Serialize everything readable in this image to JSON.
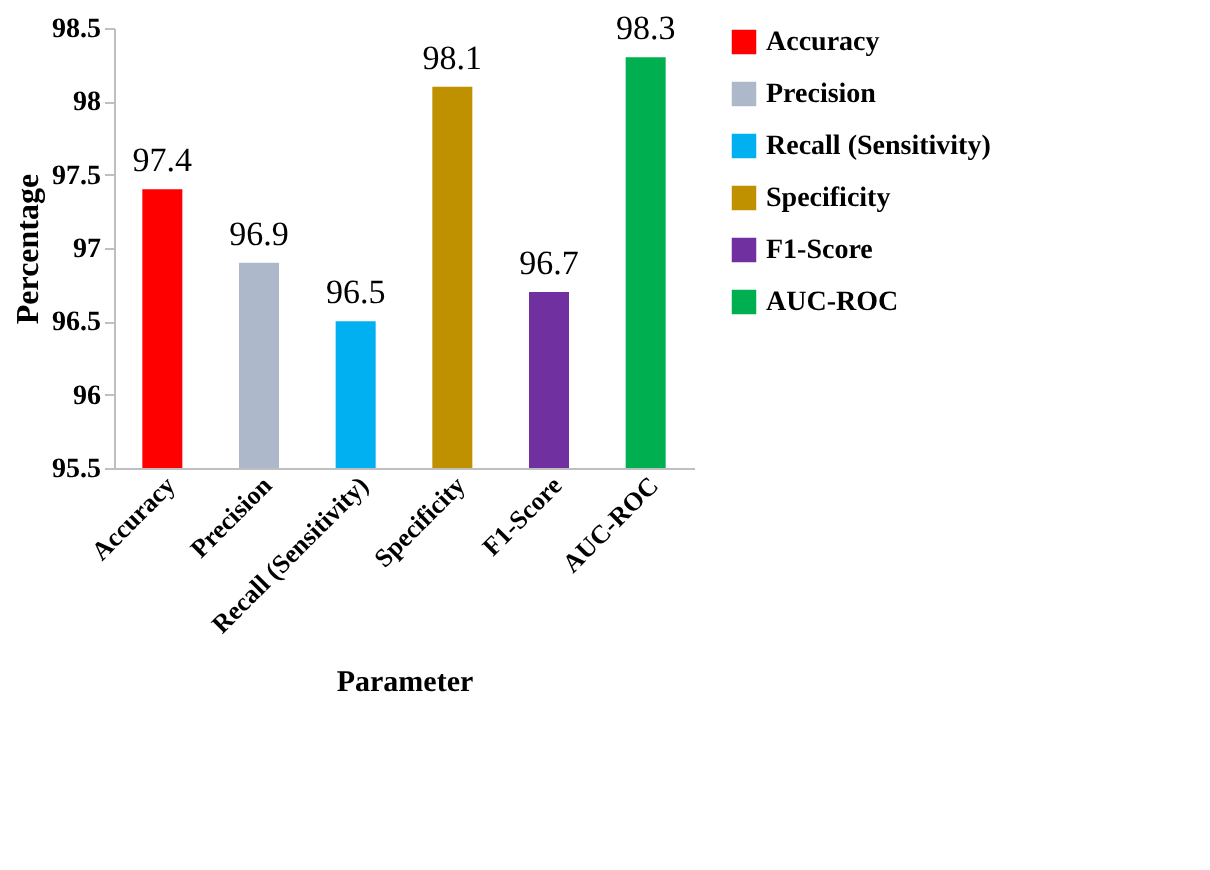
{
  "chart_data": {
    "type": "bar",
    "xlabel": "Parameter",
    "ylabel": "Percentage",
    "categories": [
      "Accuracy",
      "Precision",
      "Recall (Sensitivity)",
      "Specificity",
      "F1-Score",
      "AUC-ROC"
    ],
    "series": [
      {
        "name": "Accuracy",
        "color": "#ff0000",
        "values": [
          97.4,
          null,
          null,
          null,
          null,
          null
        ]
      },
      {
        "name": "Precision",
        "color": "#adb9ca",
        "values": [
          null,
          96.9,
          null,
          null,
          null,
          null
        ]
      },
      {
        "name": "Recall (Sensitivity)",
        "color": "#00b0f0",
        "values": [
          null,
          null,
          96.5,
          null,
          null,
          null
        ]
      },
      {
        "name": "Specificity",
        "color": "#bf9000",
        "values": [
          null,
          null,
          null,
          98.1,
          null,
          null
        ]
      },
      {
        "name": "F1-Score",
        "color": "#7030a0",
        "values": [
          null,
          null,
          null,
          null,
          96.7,
          null
        ]
      },
      {
        "name": "AUC-ROC",
        "color": "#00b050",
        "values": [
          null,
          null,
          null,
          null,
          null,
          98.3
        ]
      }
    ],
    "ylim": [
      95.5,
      98.5
    ],
    "yticks": [
      95.5,
      96,
      96.5,
      97,
      97.5,
      98,
      98.5
    ],
    "data_labels": true,
    "legend": "right",
    "grid": false
  }
}
